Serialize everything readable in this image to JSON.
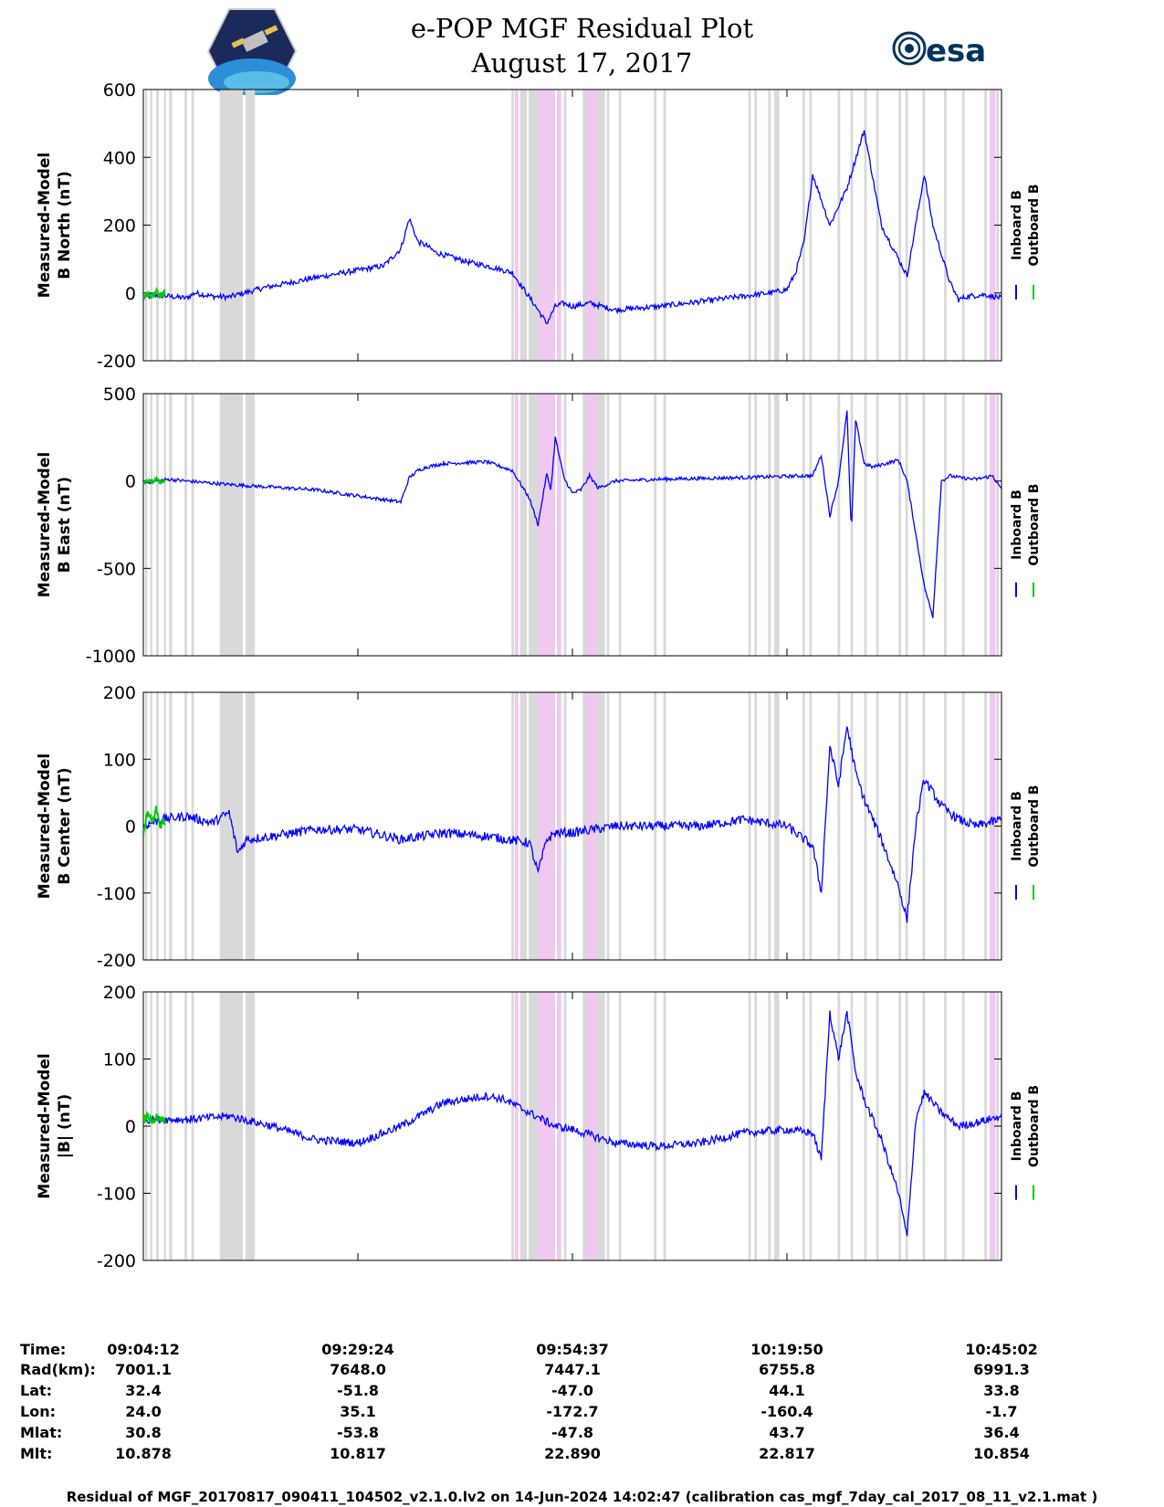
{
  "title": {
    "line1": "e-POP MGF Residual Plot",
    "line2": "August 17, 2017"
  },
  "logos": {
    "left": "cassiope-mission-logo",
    "right_text": "esa"
  },
  "legend": {
    "inboard": "Inboard B",
    "outboard": "Outboard B",
    "inboard_color": "#0000ff",
    "outboard_color": "#00cc00"
  },
  "shading_colors": {
    "gap": "#d9d9d9",
    "event": "#f0c8f0"
  },
  "chart_data": [
    {
      "type": "line",
      "panel": "b-north",
      "ylabel_line1": "Measured-Model",
      "ylabel_line2": "B North (nT)",
      "ylim": [
        -200,
        600
      ],
      "yticks": [
        -200,
        0,
        200,
        400,
        600
      ],
      "ytick_labels": [
        "-200",
        "0",
        "200",
        "400",
        "600"
      ],
      "noise": 8,
      "series": [
        {
          "name": "Inboard B",
          "x": [
            0,
            1,
            3,
            5,
            6,
            8,
            10,
            11,
            14,
            20,
            28,
            30,
            31,
            32,
            33,
            34,
            38,
            40,
            43,
            46,
            47,
            48,
            49,
            50,
            52,
            55,
            60,
            65,
            73,
            75,
            76,
            77,
            78,
            80,
            82,
            84,
            86,
            87,
            88,
            89,
            90,
            91,
            92,
            94,
            95,
            96,
            98,
            100
          ],
          "y": [
            -15,
            -5,
            -10,
            -15,
            0,
            -10,
            -12,
            -5,
            15,
            45,
            80,
            130,
            220,
            150,
            140,
            120,
            90,
            80,
            60,
            -50,
            -90,
            -40,
            -30,
            -40,
            -30,
            -50,
            -40,
            -25,
            0,
            10,
            60,
            150,
            350,
            200,
            310,
            480,
            200,
            150,
            100,
            50,
            200,
            350,
            200,
            30,
            -20,
            -10,
            -5,
            -15
          ]
        },
        {
          "name": "Outboard B",
          "x": [
            0,
            0.5,
            1,
            1.5,
            2,
            2.5
          ],
          "y": [
            -20,
            0,
            -15,
            5,
            -10,
            0
          ]
        }
      ]
    },
    {
      "type": "line",
      "panel": "b-east",
      "ylabel_line1": "Measured-Model",
      "ylabel_line2": "B East (nT)",
      "ylim": [
        -1000,
        500
      ],
      "yticks": [
        -1000,
        -500,
        0,
        500
      ],
      "ytick_labels": [
        "-1000",
        "-500",
        "0",
        "500"
      ],
      "noise": 10,
      "series": [
        {
          "name": "Inboard B",
          "x": [
            0,
            3,
            5,
            10,
            20,
            30,
            31,
            32,
            33,
            35,
            40,
            43,
            45,
            46,
            47,
            47.5,
            48,
            49,
            50,
            51,
            52,
            53,
            55,
            60,
            70,
            77,
            78,
            79,
            80,
            81,
            82,
            82.5,
            83,
            84,
            85,
            88,
            89,
            90,
            91,
            92,
            93,
            94,
            95,
            97,
            99,
            100
          ],
          "y": [
            -10,
            10,
            0,
            -20,
            -50,
            -120,
            20,
            60,
            80,
            100,
            110,
            60,
            -100,
            -250,
            40,
            -50,
            250,
            20,
            -70,
            -50,
            30,
            -40,
            0,
            10,
            20,
            30,
            30,
            150,
            -200,
            0,
            400,
            -300,
            350,
            100,
            80,
            120,
            0,
            -300,
            -600,
            -780,
            0,
            30,
            20,
            10,
            30,
            -50
          ]
        },
        {
          "name": "Outboard B",
          "x": [
            0,
            0.5,
            1,
            1.5,
            2,
            2.5
          ],
          "y": [
            -15,
            5,
            -10,
            10,
            -5,
            0
          ]
        }
      ]
    },
    {
      "type": "line",
      "panel": "b-center",
      "ylabel_line1": "Measured-Model",
      "ylabel_line2": "B Center (nT)",
      "ylim": [
        -200,
        200
      ],
      "yticks": [
        -200,
        -100,
        0,
        100,
        200
      ],
      "ytick_labels": [
        "-200",
        "-100",
        "0",
        "100",
        "200"
      ],
      "noise": 7,
      "series": [
        {
          "name": "Inboard B",
          "x": [
            0,
            2,
            5,
            8,
            10,
            11,
            12,
            15,
            20,
            25,
            30,
            35,
            40,
            45,
            46,
            47,
            48,
            50,
            55,
            60,
            65,
            70,
            75,
            78,
            79,
            80,
            81,
            82,
            83,
            84,
            86,
            88,
            89,
            90,
            91,
            93,
            95,
            97,
            100
          ],
          "y": [
            0,
            10,
            15,
            5,
            20,
            -40,
            -20,
            -15,
            -5,
            -5,
            -20,
            -10,
            -15,
            -25,
            -70,
            -20,
            -10,
            -10,
            0,
            0,
            0,
            10,
            0,
            -30,
            -100,
            120,
            60,
            150,
            80,
            40,
            -20,
            -90,
            -140,
            0,
            70,
            30,
            10,
            0,
            10
          ]
        },
        {
          "name": "Outboard B",
          "x": [
            0,
            0.5,
            1,
            1.5,
            2,
            2.5
          ],
          "y": [
            -10,
            20,
            5,
            25,
            0,
            10
          ]
        }
      ]
    },
    {
      "type": "line",
      "panel": "b-magnitude",
      "ylabel_line1": "Measured-Model",
      "ylabel_line2": "|B| (nT)",
      "ylim": [
        -200,
        200
      ],
      "yticks": [
        -200,
        -100,
        0,
        100,
        200
      ],
      "ytick_labels": [
        "-200",
        "-100",
        "0",
        "100",
        "200"
      ],
      "noise": 6,
      "series": [
        {
          "name": "Inboard B",
          "x": [
            0,
            5,
            10,
            15,
            20,
            25,
            30,
            35,
            40,
            42,
            45,
            48,
            50,
            55,
            60,
            65,
            70,
            75,
            78,
            79,
            80,
            81,
            82,
            83,
            84,
            86,
            88,
            89,
            90,
            91,
            93,
            95,
            97,
            100
          ],
          "y": [
            10,
            10,
            15,
            0,
            -20,
            -25,
            0,
            35,
            45,
            40,
            20,
            0,
            -5,
            -25,
            -30,
            -25,
            -10,
            -5,
            -10,
            -50,
            170,
            100,
            170,
            80,
            40,
            -20,
            -100,
            -165,
            10,
            50,
            20,
            0,
            5,
            15
          ]
        },
        {
          "name": "Outboard B",
          "x": [
            0,
            0.5,
            1,
            1.5,
            2,
            2.5
          ],
          "y": [
            10,
            15,
            5,
            15,
            8,
            12
          ]
        }
      ]
    }
  ],
  "shaded_regions": [
    {
      "kind": "gap",
      "x": 0.2,
      "w": 0.25
    },
    {
      "kind": "gap",
      "x": 0.8,
      "w": 0.25
    },
    {
      "kind": "gap",
      "x": 1.5,
      "w": 0.3
    },
    {
      "kind": "gap",
      "x": 2.4,
      "w": 0.25
    },
    {
      "kind": "gap",
      "x": 3.0,
      "w": 0.35
    },
    {
      "kind": "gap",
      "x": 4.8,
      "w": 0.3
    },
    {
      "kind": "gap",
      "x": 5.6,
      "w": 0.3
    },
    {
      "kind": "gap",
      "x": 8.9,
      "w": 2.7
    },
    {
      "kind": "gap",
      "x": 11.9,
      "w": 1.1
    },
    {
      "kind": "gap",
      "x": 42.9,
      "w": 0.3
    },
    {
      "kind": "event",
      "x": 43.3,
      "w": 0.4
    },
    {
      "kind": "gap",
      "x": 43.9,
      "w": 0.8
    },
    {
      "kind": "gap",
      "x": 44.9,
      "w": 3.1
    },
    {
      "kind": "event",
      "x": 46.0,
      "w": 1.9
    },
    {
      "kind": "event",
      "x": 48.2,
      "w": 0.5
    },
    {
      "kind": "gap",
      "x": 49.0,
      "w": 0.3
    },
    {
      "kind": "gap",
      "x": 51.2,
      "w": 2.6
    },
    {
      "kind": "event",
      "x": 51.6,
      "w": 1.2
    },
    {
      "kind": "gap",
      "x": 54.0,
      "w": 0.3
    },
    {
      "kind": "gap",
      "x": 55.4,
      "w": 0.3
    },
    {
      "kind": "gap",
      "x": 59.5,
      "w": 0.3
    },
    {
      "kind": "gap",
      "x": 60.6,
      "w": 0.3
    },
    {
      "kind": "gap",
      "x": 70.5,
      "w": 0.3
    },
    {
      "kind": "gap",
      "x": 71.2,
      "w": 0.3
    },
    {
      "kind": "gap",
      "x": 72.8,
      "w": 0.3
    },
    {
      "kind": "gap",
      "x": 73.5,
      "w": 0.6
    },
    {
      "kind": "gap",
      "x": 76.8,
      "w": 0.3
    },
    {
      "kind": "gap",
      "x": 77.6,
      "w": 0.3
    },
    {
      "kind": "gap",
      "x": 80.9,
      "w": 0.3
    },
    {
      "kind": "gap",
      "x": 82.4,
      "w": 0.3
    },
    {
      "kind": "gap",
      "x": 84.0,
      "w": 0.3
    },
    {
      "kind": "gap",
      "x": 85.4,
      "w": 0.3
    },
    {
      "kind": "gap",
      "x": 88.0,
      "w": 0.3
    },
    {
      "kind": "gap",
      "x": 88.8,
      "w": 0.3
    },
    {
      "kind": "gap",
      "x": 90.8,
      "w": 0.3
    },
    {
      "kind": "gap",
      "x": 93.3,
      "w": 0.3
    },
    {
      "kind": "gap",
      "x": 95.4,
      "w": 0.3
    },
    {
      "kind": "gap",
      "x": 98.0,
      "w": 0.3
    },
    {
      "kind": "event",
      "x": 98.6,
      "w": 0.7
    },
    {
      "kind": "gap",
      "x": 99.4,
      "w": 0.3
    }
  ],
  "xticks": [
    0,
    25,
    50,
    75,
    100
  ],
  "info_table": {
    "labels": [
      "Time:",
      "Rad(km):",
      "Lat:",
      "Lon:",
      "Mlat:",
      "Mlt:"
    ],
    "columns": [
      [
        "09:04:12",
        "7001.1",
        "32.4",
        "24.0",
        "30.8",
        "10.878"
      ],
      [
        "09:29:24",
        "7648.0",
        "-51.8",
        "35.1",
        "-53.8",
        "10.817"
      ],
      [
        "09:54:37",
        "7447.1",
        "-47.0",
        "-172.7",
        "-47.8",
        "22.890"
      ],
      [
        "10:19:50",
        "6755.8",
        "44.1",
        "-160.4",
        "43.7",
        "22.817"
      ],
      [
        "10:45:02",
        "6991.3",
        "33.8",
        "-1.7",
        "36.4",
        "10.854"
      ]
    ]
  },
  "footer": "Residual of MGF_20170817_090411_104502_v2.1.0.lv2 on 14-Jun-2024 14:02:47 (calibration cas_mgf_7day_cal_2017_08_11_v2.1.mat )"
}
